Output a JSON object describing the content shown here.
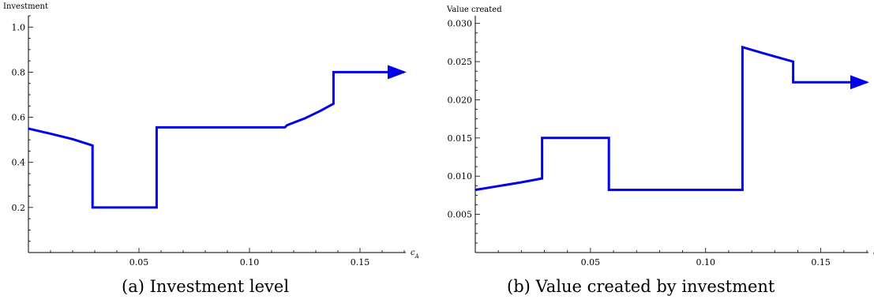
{
  "chart_data": [
    {
      "type": "line",
      "ylabel": "Investment",
      "xlabel": "c_A",
      "xlabel_main": "c",
      "xlabel_sub": "A",
      "xlim": [
        0,
        0.17
      ],
      "ylim": [
        0,
        1.05
      ],
      "xticks": [
        "0.05",
        "0.10",
        "0.15"
      ],
      "yticks": [
        "0.2",
        "0.4",
        "0.6",
        "0.8",
        "1.0"
      ],
      "series_color": "#0000ee",
      "arrow_at_end": true,
      "caption": "(a) Investment level",
      "points": [
        [
          0.0,
          0.55
        ],
        [
          0.01,
          0.527
        ],
        [
          0.02,
          0.503
        ],
        [
          0.029,
          0.475
        ],
        [
          0.029,
          0.2
        ],
        [
          0.058,
          0.2
        ],
        [
          0.058,
          0.555
        ],
        [
          0.116,
          0.555
        ],
        [
          0.117,
          0.565
        ],
        [
          0.125,
          0.595
        ],
        [
          0.132,
          0.628
        ],
        [
          0.138,
          0.66
        ],
        [
          0.138,
          0.8
        ],
        [
          0.17,
          0.8
        ]
      ]
    },
    {
      "type": "line",
      "ylabel": "Value created",
      "xlabel": "c_A",
      "xlabel_main": "c",
      "xlabel_sub": "A",
      "xlim": [
        0,
        0.17
      ],
      "ylim": [
        0,
        0.031
      ],
      "xticks": [
        "0.05",
        "0.10",
        "0.15"
      ],
      "yticks": [
        "0.005",
        "0.010",
        "0.015",
        "0.020",
        "0.025",
        "0.030"
      ],
      "series_color": "#0000ee",
      "arrow_at_end": true,
      "caption": "(b) Value created by investment",
      "points": [
        [
          0.0,
          0.0082
        ],
        [
          0.01,
          0.0087
        ],
        [
          0.02,
          0.0092
        ],
        [
          0.029,
          0.0097
        ],
        [
          0.029,
          0.015
        ],
        [
          0.058,
          0.015
        ],
        [
          0.058,
          0.0082
        ],
        [
          0.116,
          0.0082
        ],
        [
          0.116,
          0.0269
        ],
        [
          0.125,
          0.0261
        ],
        [
          0.132,
          0.0255
        ],
        [
          0.138,
          0.025
        ],
        [
          0.138,
          0.0223
        ],
        [
          0.17,
          0.0223
        ]
      ]
    }
  ]
}
